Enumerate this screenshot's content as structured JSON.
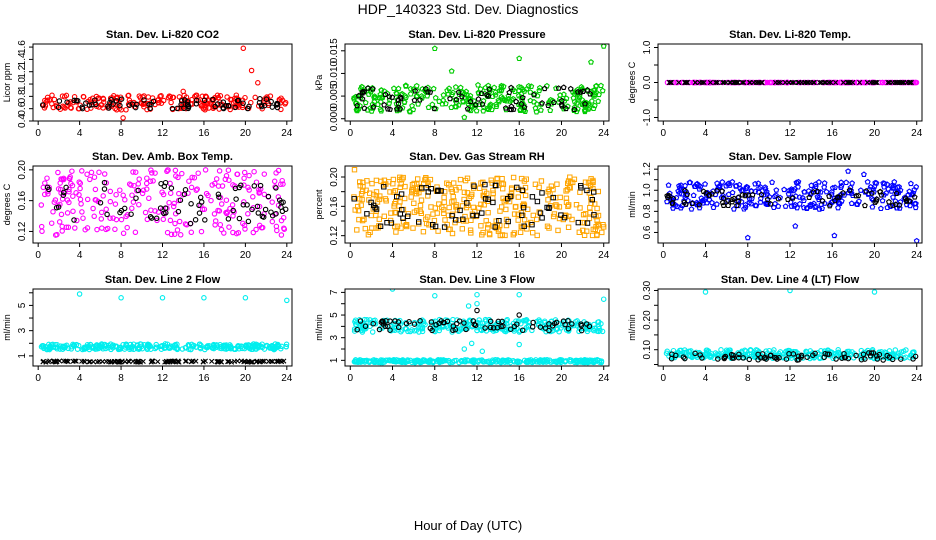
{
  "figure": {
    "title": "HDP_140323  Std. Dev. Diagnostics",
    "xlabel": "Hour of Day (UTC)"
  },
  "chart_data": [
    {
      "type": "scatter",
      "title": "Stan. Dev. Li-820 CO2",
      "ylabel": "Licor ppm",
      "xlim": [
        -0.5,
        24.5
      ],
      "ylim": [
        0.4,
        1.65
      ],
      "xticks": [
        0,
        4,
        8,
        12,
        16,
        20,
        24
      ],
      "yticks": [
        0.4,
        0.6,
        0.8,
        1.0,
        1.2,
        1.4,
        1.6
      ],
      "yticklabels": [
        "0.4",
        "0.6",
        "0.8",
        "1.0",
        "1.2",
        "1.4",
        "1.6"
      ],
      "series": [
        {
          "color": "#ff0000",
          "marker": "circle",
          "density": 9,
          "band": [
            0.58,
            0.82
          ],
          "outliers": [
            [
              19.8,
              1.58
            ],
            [
              20.6,
              1.22
            ],
            [
              21.2,
              1.02
            ],
            [
              8.2,
              0.45
            ],
            [
              14.0,
              0.88
            ]
          ]
        },
        {
          "color": "#000000",
          "marker": "circle",
          "density": 3,
          "band": [
            0.6,
            0.76
          ],
          "outliers": []
        }
      ]
    },
    {
      "type": "scatter",
      "title": "Stan. Dev. Li-820 Pressure",
      "ylabel": "kPa",
      "xlim": [
        -0.5,
        24.5
      ],
      "ylim": [
        -0.0005,
        0.0165
      ],
      "xticks": [
        0,
        4,
        8,
        12,
        16,
        20,
        24
      ],
      "yticks": [
        0,
        0.005,
        0.01,
        0.015
      ],
      "yticklabels": [
        "0.000",
        "0.005",
        "0.010",
        "0.015"
      ],
      "series": [
        {
          "color": "#00cc00",
          "marker": "pentagon",
          "density": 12,
          "band": [
            0.0015,
            0.0075
          ],
          "outliers": [
            [
              8.0,
              0.0155
            ],
            [
              16.0,
              0.0133
            ],
            [
              22.8,
              0.0125
            ],
            [
              24.0,
              0.016
            ],
            [
              9.6,
              0.0105
            ],
            [
              10.8,
              0.0003
            ]
          ]
        },
        {
          "color": "#000000",
          "marker": "pentagon",
          "density": 3,
          "band": [
            0.002,
            0.007
          ],
          "outliers": []
        }
      ]
    },
    {
      "type": "scatter",
      "title": "Stan. Dev. Li-820 Temp.",
      "ylabel": "degrees C",
      "xlim": [
        -0.5,
        24.5
      ],
      "ylim": [
        -1.1,
        1.1
      ],
      "xticks": [
        0,
        4,
        8,
        12,
        16,
        20,
        24
      ],
      "yticks": [
        -1.0,
        -0.5,
        0.0,
        0.5,
        1.0
      ],
      "yticklabels": [
        "-1.0",
        "0.0",
        "1.0"
      ],
      "series": [
        {
          "color": "#ff00ff",
          "marker": "circle",
          "density": 8,
          "band": [
            0.0,
            0.0
          ],
          "outliers": []
        },
        {
          "color": "#000000",
          "marker": "x",
          "density": 4,
          "band": [
            0.0,
            0.0
          ],
          "outliers": []
        }
      ]
    },
    {
      "type": "scatter",
      "title": "Stan. Dev. Amb. Box Temp.",
      "ylabel": "degrees C",
      "xlim": [
        -0.5,
        24.5
      ],
      "ylim": [
        0.105,
        0.205
      ],
      "xticks": [
        0,
        4,
        8,
        12,
        16,
        20,
        24
      ],
      "yticks": [
        0.12,
        0.16,
        0.2
      ],
      "yticklabels": [
        "0.12",
        "0.16",
        "0.20"
      ],
      "series": [
        {
          "color": "#ff00ff",
          "marker": "circle",
          "density": 11,
          "band": [
            0.115,
            0.2
          ],
          "outliers": []
        },
        {
          "color": "#000000",
          "marker": "circle",
          "density": 3,
          "band": [
            0.13,
            0.185
          ],
          "outliers": []
        }
      ]
    },
    {
      "type": "scatter",
      "title": "Stan. Dev. Gas Stream RH",
      "ylabel": "percent",
      "xlim": [
        -0.5,
        24.5
      ],
      "ylim": [
        0.11,
        0.215
      ],
      "xticks": [
        0,
        4,
        8,
        12,
        16,
        20,
        24
      ],
      "yticks": [
        0.12,
        0.14,
        0.16,
        0.18,
        0.2
      ],
      "yticklabels": [
        "0.12",
        "0.16",
        "0.20"
      ],
      "series": [
        {
          "color": "#ffa500",
          "marker": "square",
          "density": 15,
          "band": [
            0.12,
            0.2
          ],
          "outliers": [
            [
              0.4,
              0.21
            ]
          ]
        },
        {
          "color": "#000000",
          "marker": "square",
          "density": 3,
          "band": [
            0.13,
            0.19
          ],
          "outliers": []
        }
      ]
    },
    {
      "type": "scatter",
      "title": "Stan. Dev. Sample Flow",
      "ylabel": "ml/min",
      "xlim": [
        -0.5,
        24.5
      ],
      "ylim": [
        0.5,
        1.23
      ],
      "xticks": [
        0,
        4,
        8,
        12,
        16,
        20,
        24
      ],
      "yticks": [
        0.6,
        0.7,
        0.8,
        0.9,
        1.0,
        1.1,
        1.2
      ],
      "yticklabels": [
        "0.6",
        "0.8",
        "1.0",
        "1.2"
      ],
      "series": [
        {
          "color": "#0000ff",
          "marker": "pentagon",
          "density": 12,
          "band": [
            0.82,
            1.08
          ],
          "outliers": [
            [
              8.0,
              0.55
            ],
            [
              16.2,
              0.57
            ],
            [
              17.5,
              1.18
            ],
            [
              24.0,
              0.52
            ],
            [
              12.5,
              0.66
            ],
            [
              19.0,
              1.15
            ]
          ]
        },
        {
          "color": "#000000",
          "marker": "pentagon",
          "density": 3,
          "band": [
            0.85,
            1.0
          ],
          "outliers": []
        }
      ]
    },
    {
      "type": "scatter",
      "title": "Stan. Dev. Line 2 Flow",
      "ylabel": "ml/min",
      "xlim": [
        -0.5,
        24.5
      ],
      "ylim": [
        0.2,
        6.3
      ],
      "xticks": [
        0,
        4,
        8,
        12,
        16,
        20,
        24
      ],
      "yticks": [
        1,
        2,
        3,
        4,
        5,
        6
      ],
      "yticklabels": [
        "1",
        "3",
        "5"
      ],
      "series": [
        {
          "color": "#00eeee",
          "marker": "circle",
          "density": 12,
          "band": [
            1.5,
            1.95
          ],
          "outliers": [
            [
              4.0,
              5.9
            ],
            [
              8.0,
              5.6
            ],
            [
              12.0,
              5.6
            ],
            [
              16.0,
              5.6
            ],
            [
              20.0,
              5.6
            ],
            [
              24.0,
              5.4
            ]
          ]
        },
        {
          "color": "#000000",
          "marker": "x",
          "density": 5,
          "band": [
            0.5,
            0.6
          ],
          "outliers": []
        }
      ]
    },
    {
      "type": "scatter",
      "title": "Stan. Dev. Line 3 Flow",
      "ylabel": "ml/min",
      "xlim": [
        -0.5,
        24.5
      ],
      "ylim": [
        0.5,
        7.3
      ],
      "xticks": [
        0,
        4,
        8,
        12,
        16,
        20,
        24
      ],
      "yticks": [
        1,
        2,
        3,
        4,
        5,
        6,
        7
      ],
      "yticklabels": [
        "1",
        "3",
        "5",
        "7"
      ],
      "series": [
        {
          "color": "#00eeee",
          "marker": "circle",
          "density": 12,
          "band": [
            3.5,
            4.6
          ],
          "outliers": [
            [
              4.0,
              7.3
            ],
            [
              8.0,
              6.7
            ],
            [
              12.0,
              6.8
            ],
            [
              16.0,
              6.8
            ],
            [
              24.0,
              6.4
            ],
            [
              10.8,
              2.0
            ],
            [
              11.5,
              2.5
            ],
            [
              12.5,
              1.8
            ],
            [
              11.2,
              5.8
            ],
            [
              12.0,
              6.0
            ],
            [
              16.0,
              2.4
            ]
          ]
        },
        {
          "color": "#00eeee",
          "marker": "circle",
          "density": 12,
          "band": [
            0.8,
            1.05
          ],
          "outliers": []
        },
        {
          "color": "#000000",
          "marker": "circle",
          "density": 3,
          "band": [
            3.6,
            4.5
          ],
          "outliers": [
            [
              12.0,
              5.4
            ],
            [
              16.0,
              5.0
            ]
          ]
        }
      ]
    },
    {
      "type": "scatter",
      "title": "Stan. Dev. Line 4 (LT) Flow",
      "ylabel": "ml/min",
      "xlim": [
        -0.5,
        24.5
      ],
      "ylim": [
        0.045,
        0.305
      ],
      "xticks": [
        0,
        4,
        8,
        12,
        16,
        20,
        24
      ],
      "yticks": [
        0.05,
        0.1,
        0.15,
        0.2,
        0.25,
        0.3
      ],
      "yticklabels": [
        "0.10",
        "0.20",
        "0.30"
      ],
      "series": [
        {
          "color": "#00eeee",
          "marker": "circle",
          "density": 12,
          "band": [
            0.07,
            0.1
          ],
          "outliers": [
            [
              4.0,
              0.295
            ],
            [
              12.0,
              0.3
            ],
            [
              20.0,
              0.295
            ]
          ]
        },
        {
          "color": "#000000",
          "marker": "circle",
          "density": 3,
          "band": [
            0.065,
            0.09
          ],
          "outliers": []
        }
      ]
    }
  ]
}
